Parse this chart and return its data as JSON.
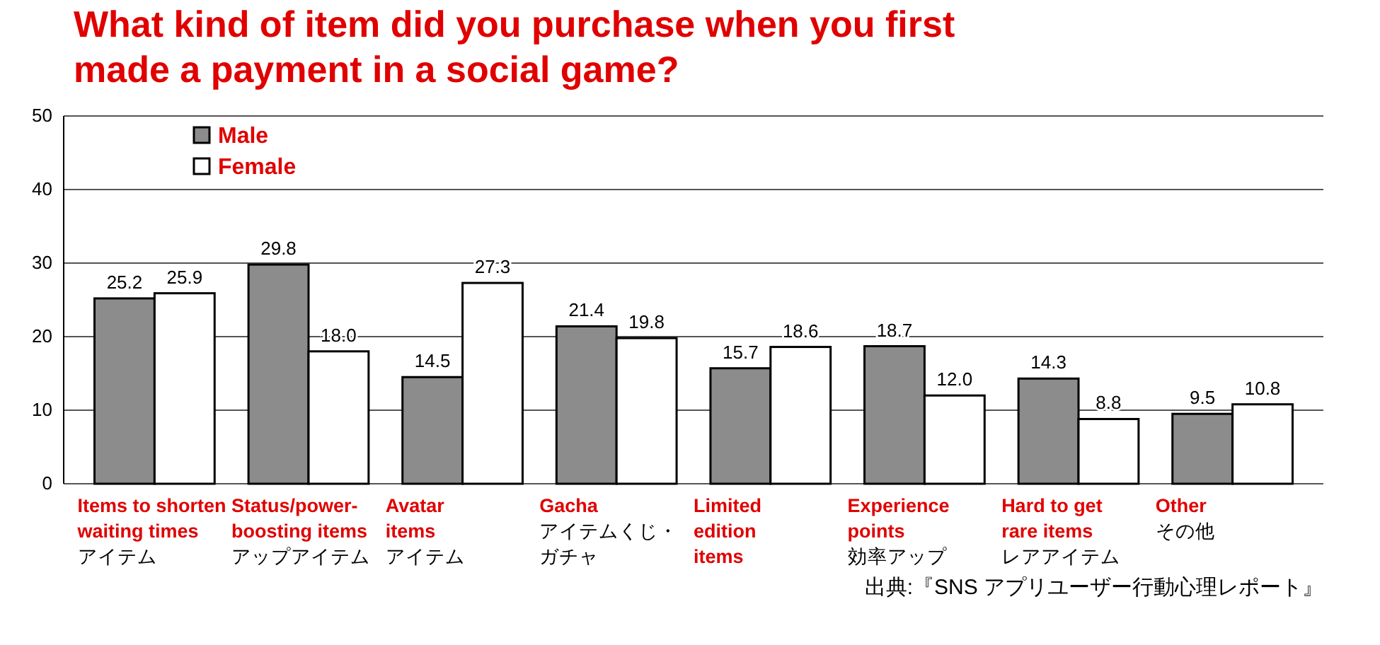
{
  "chart_data": {
    "type": "bar",
    "title": "What kind of item did you purchase when you first made a payment in a social game?",
    "categories": [
      "Items to shorten\nwaiting times\nアイテム",
      "Status/power-\nboosting items\nアップアイテム",
      "Avatar\nitems\nアイテム",
      "Gacha\nアイテムくじ・ガチャ",
      "Limited\nedition\nitems",
      "Experience\npoints\n効率アップ",
      "Hard to get\nrare items\nレアアイテム",
      "Other\nその他"
    ],
    "series": [
      {
        "name": "Male",
        "color": "#8c8c8c",
        "values": [
          25.2,
          29.8,
          14.5,
          21.4,
          15.7,
          18.7,
          14.3,
          9.5
        ],
        "value_labels": [
          "25.2",
          "29.8",
          "14.5",
          "21.4",
          "15.7",
          "18.7",
          "14.3",
          "9.5"
        ]
      },
      {
        "name": "Female",
        "color": "#ffffff",
        "values": [
          25.9,
          18.0,
          27.3,
          19.8,
          18.6,
          12.0,
          8.8,
          10.8
        ],
        "value_labels": [
          "25.9",
          "18.0",
          "27.3",
          "19.8",
          "18.6",
          "12.0",
          "8.8",
          "10.8"
        ]
      }
    ],
    "ylim": [
      0,
      50
    ],
    "yticks": [
      0,
      10,
      20,
      30,
      40,
      50
    ],
    "grid": "y",
    "legend": "top left",
    "annotations": [
      "出典:『SNS アプリユーザー行動心理レポート』"
    ]
  }
}
